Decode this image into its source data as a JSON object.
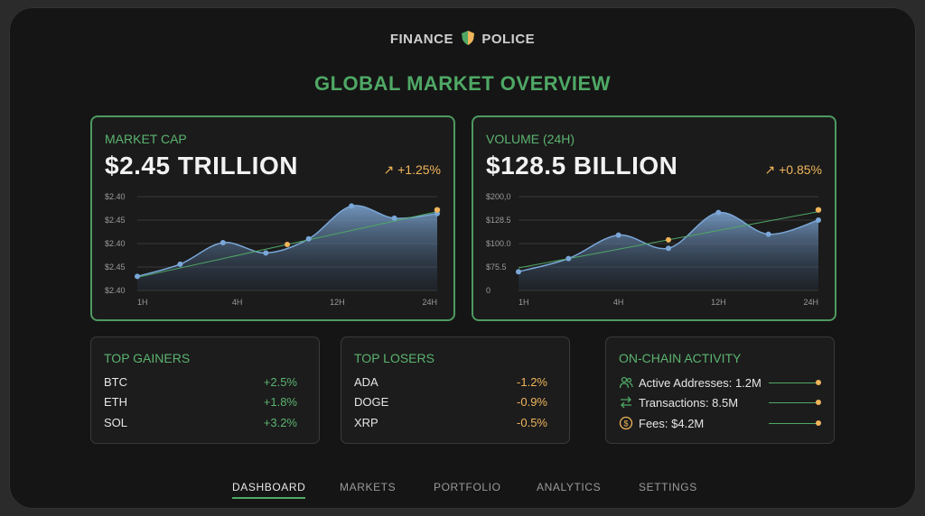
{
  "header": {
    "brand_left": "FINANCE",
    "brand_right": "POLICE",
    "title": "GLOBAL MARKET OVERVIEW"
  },
  "market_cap": {
    "label": "MARKET CAP",
    "value": "$2.45 TRILLION",
    "change": "+1.25%",
    "arrow": "↗",
    "y_ticks": [
      "$2.40",
      "$2.45",
      "$2.40",
      "$2.45",
      "$2.40"
    ],
    "x_ticks": [
      "1H",
      "4H",
      "12H",
      "24H"
    ]
  },
  "volume": {
    "label": "VOLUME (24H)",
    "value": "$128.5 BILLION",
    "change": "+0.85%",
    "arrow": "↗",
    "y_ticks": [
      "$200,0",
      "$128.5",
      "$100.0",
      "$75.5",
      "0"
    ],
    "x_ticks": [
      "1H",
      "4H",
      "12H",
      "24H"
    ]
  },
  "chart_data": [
    {
      "type": "area",
      "title": "MARKET CAP",
      "x": [
        0,
        1,
        2,
        3,
        4,
        5,
        6,
        7
      ],
      "x_tick_labels": [
        "1H",
        "4H",
        "12H",
        "24H"
      ],
      "values": [
        0.15,
        0.28,
        0.51,
        0.4,
        0.55,
        0.9,
        0.77,
        0.82
      ],
      "trend": [
        0.14,
        0.84
      ],
      "ylim": [
        0,
        1
      ]
    },
    {
      "type": "area",
      "title": "VOLUME (24H)",
      "x": [
        0,
        1,
        2,
        3,
        4,
        5,
        6
      ],
      "x_tick_labels": [
        "1H",
        "4H",
        "12H",
        "24H"
      ],
      "values": [
        0.2,
        0.34,
        0.59,
        0.45,
        0.83,
        0.6,
        0.75
      ],
      "trend": [
        0.24,
        0.84
      ],
      "ylim": [
        0,
        1
      ]
    }
  ],
  "top_gainers": {
    "title": "TOP GAINERS",
    "items": [
      {
        "symbol": "BTC",
        "change": "+2.5%"
      },
      {
        "symbol": "ETH",
        "change": "+1.8%"
      },
      {
        "symbol": "SOL",
        "change": "+3.2%"
      }
    ]
  },
  "top_losers": {
    "title": "TOP LOSERS",
    "items": [
      {
        "symbol": "ADA",
        "change": "-1.2%"
      },
      {
        "symbol": "DOGE",
        "change": "-0.9%"
      },
      {
        "symbol": "XRP",
        "change": "-0.5%"
      }
    ]
  },
  "on_chain": {
    "title": "ON-CHAIN ACTIVITY",
    "items": [
      {
        "icon": "users-icon",
        "text": "Active Addresses: 1.2M"
      },
      {
        "icon": "transfer-arrows-icon",
        "text": "Transactions: 8.5M"
      },
      {
        "icon": "dollar-coin-icon",
        "text": "Fees: $4.2M"
      }
    ]
  },
  "nav": {
    "dashboard": "DASHBOARD",
    "markets": "MARKETS",
    "portfolio": "PORTFOLIO",
    "analytics": "ANALYTICS",
    "settings": "SETTINGS",
    "active": "DASHBOARD"
  },
  "colors": {
    "accent_green": "#4fa865",
    "accent_orange": "#f0b55a",
    "area_blue": "#7fa8d6",
    "point_blue": "#7aa7d8"
  }
}
